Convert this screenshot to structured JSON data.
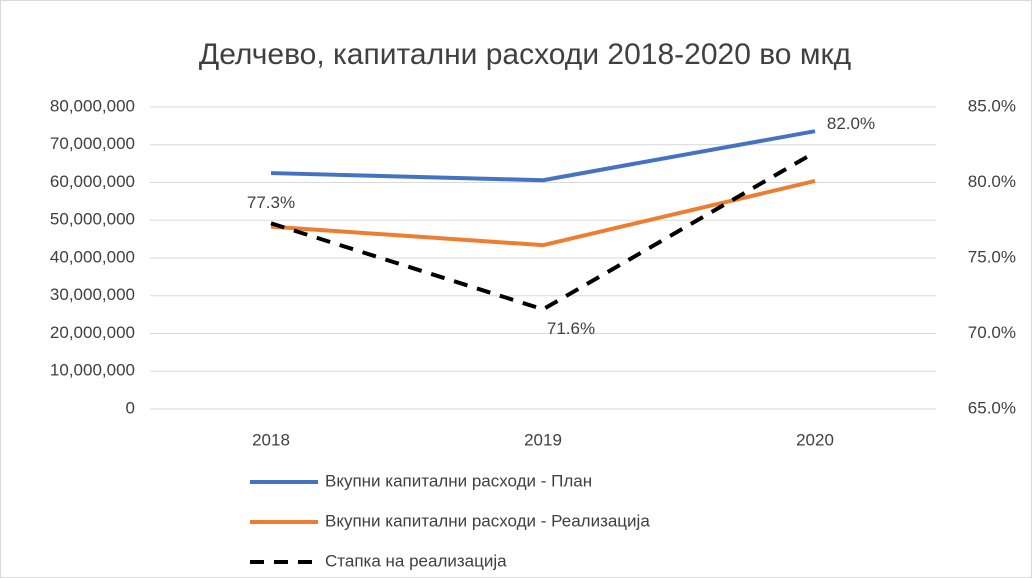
{
  "chart_data": {
    "type": "line",
    "title": "Делчево, капитални расходи 2018-2020 во мкд",
    "categories": [
      "2018",
      "2019",
      "2020"
    ],
    "series": [
      {
        "name": "Вкупни капитални расходи - План",
        "color": "#4472c4",
        "values": [
          62500000,
          60600000,
          73600000
        ]
      },
      {
        "name": "Вкупни капитални расходи - Реализација",
        "color": "#ed7d31",
        "values": [
          48300000,
          43400000,
          60400000
        ]
      },
      {
        "name": "Стапка на реализација",
        "color": "#000000",
        "axis": "y2",
        "dashed": true,
        "values": [
          77.3,
          71.6,
          82.0
        ],
        "value_labels": [
          "77.3%",
          "71.6%",
          "82.0%"
        ]
      }
    ],
    "ylim": [
      0,
      80000000
    ],
    "yticks": [
      0,
      {
        "value": 10000000,
        "label": "10,000,000"
      },
      {
        "value": 20000000,
        "label": "20,000,000"
      },
      {
        "value": 30000000,
        "label": "30,000,000"
      },
      {
        "value": 40000000,
        "label": "40,000,000"
      },
      {
        "value": 50000000,
        "label": "50,000,000"
      },
      {
        "value": 60000000,
        "label": "60,000,000"
      },
      {
        "value": 70000000,
        "label": "70,000,000"
      },
      {
        "value": 80000000,
        "label": "80,000,000"
      }
    ],
    "y2lim": [
      65,
      85
    ],
    "y2ticks": [
      {
        "value": 65,
        "label": "65.0%"
      },
      {
        "value": 70,
        "label": "70.0%"
      },
      {
        "value": 75,
        "label": "75.0%"
      },
      {
        "value": 80,
        "label": "80.0%"
      },
      {
        "value": 85,
        "label": "85.0%"
      }
    ],
    "grid": true,
    "legend": "bottom"
  }
}
